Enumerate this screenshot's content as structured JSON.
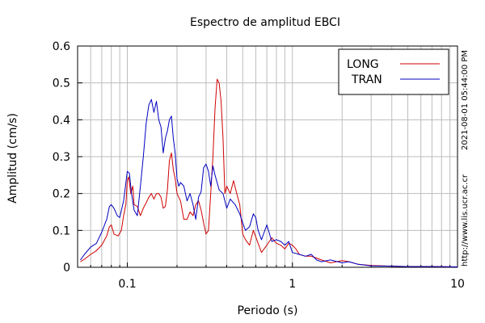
{
  "chart_data": {
    "type": "line",
    "title": "Espectro de amplitud EBCI",
    "xlabel": "Periodo (s)",
    "ylabel": "Amplitud (cm/s)",
    "xscale": "log",
    "xlim": [
      0.05,
      10
    ],
    "ylim": [
      0,
      0.6
    ],
    "grid": true,
    "legend_position": "top-right",
    "x_tick_labels": [
      "0.1",
      "1",
      "10"
    ],
    "y_tick_labels": [
      "0",
      "0.1",
      "0.2",
      "0.3",
      "0.4",
      "0.5",
      "0.6"
    ],
    "series": [
      {
        "name": "LONG",
        "color": "#d00000",
        "points": [
          [
            0.052,
            0.015
          ],
          [
            0.055,
            0.022
          ],
          [
            0.06,
            0.035
          ],
          [
            0.065,
            0.045
          ],
          [
            0.07,
            0.06
          ],
          [
            0.075,
            0.085
          ],
          [
            0.078,
            0.11
          ],
          [
            0.08,
            0.115
          ],
          [
            0.083,
            0.09
          ],
          [
            0.088,
            0.085
          ],
          [
            0.092,
            0.1
          ],
          [
            0.095,
            0.14
          ],
          [
            0.098,
            0.17
          ],
          [
            0.1,
            0.235
          ],
          [
            0.102,
            0.245
          ],
          [
            0.105,
            0.2
          ],
          [
            0.108,
            0.22
          ],
          [
            0.11,
            0.17
          ],
          [
            0.115,
            0.165
          ],
          [
            0.12,
            0.14
          ],
          [
            0.125,
            0.16
          ],
          [
            0.13,
            0.175
          ],
          [
            0.135,
            0.19
          ],
          [
            0.14,
            0.2
          ],
          [
            0.145,
            0.185
          ],
          [
            0.15,
            0.2
          ],
          [
            0.155,
            0.2
          ],
          [
            0.16,
            0.19
          ],
          [
            0.165,
            0.16
          ],
          [
            0.17,
            0.165
          ],
          [
            0.175,
            0.21
          ],
          [
            0.18,
            0.29
          ],
          [
            0.185,
            0.31
          ],
          [
            0.19,
            0.265
          ],
          [
            0.195,
            0.24
          ],
          [
            0.2,
            0.2
          ],
          [
            0.21,
            0.18
          ],
          [
            0.22,
            0.13
          ],
          [
            0.23,
            0.13
          ],
          [
            0.24,
            0.15
          ],
          [
            0.25,
            0.14
          ],
          [
            0.26,
            0.17
          ],
          [
            0.27,
            0.18
          ],
          [
            0.28,
            0.155
          ],
          [
            0.29,
            0.12
          ],
          [
            0.3,
            0.09
          ],
          [
            0.31,
            0.1
          ],
          [
            0.32,
            0.2
          ],
          [
            0.33,
            0.3
          ],
          [
            0.34,
            0.43
          ],
          [
            0.35,
            0.51
          ],
          [
            0.36,
            0.5
          ],
          [
            0.37,
            0.45
          ],
          [
            0.38,
            0.35
          ],
          [
            0.39,
            0.2
          ],
          [
            0.4,
            0.22
          ],
          [
            0.42,
            0.2
          ],
          [
            0.44,
            0.235
          ],
          [
            0.46,
            0.2
          ],
          [
            0.48,
            0.17
          ],
          [
            0.5,
            0.09
          ],
          [
            0.52,
            0.075
          ],
          [
            0.55,
            0.06
          ],
          [
            0.58,
            0.1
          ],
          [
            0.62,
            0.065
          ],
          [
            0.65,
            0.04
          ],
          [
            0.7,
            0.06
          ],
          [
            0.75,
            0.08
          ],
          [
            0.8,
            0.065
          ],
          [
            0.85,
            0.06
          ],
          [
            0.9,
            0.05
          ],
          [
            0.95,
            0.065
          ],
          [
            1.0,
            0.06
          ],
          [
            1.05,
            0.05
          ],
          [
            1.1,
            0.035
          ],
          [
            1.2,
            0.03
          ],
          [
            1.3,
            0.03
          ],
          [
            1.4,
            0.025
          ],
          [
            1.5,
            0.02
          ],
          [
            1.7,
            0.012
          ],
          [
            2.0,
            0.018
          ],
          [
            2.2,
            0.015
          ],
          [
            2.5,
            0.008
          ],
          [
            3.0,
            0.005
          ],
          [
            4.0,
            0.003
          ],
          [
            5.0,
            0.002
          ],
          [
            7.0,
            0.002
          ],
          [
            10.0,
            0.001
          ]
        ]
      },
      {
        "name": "TRAN",
        "color": "#0000c0",
        "points": [
          [
            0.052,
            0.02
          ],
          [
            0.055,
            0.035
          ],
          [
            0.06,
            0.055
          ],
          [
            0.065,
            0.065
          ],
          [
            0.07,
            0.095
          ],
          [
            0.075,
            0.13
          ],
          [
            0.078,
            0.165
          ],
          [
            0.08,
            0.17
          ],
          [
            0.083,
            0.16
          ],
          [
            0.087,
            0.14
          ],
          [
            0.09,
            0.135
          ],
          [
            0.095,
            0.18
          ],
          [
            0.1,
            0.26
          ],
          [
            0.103,
            0.255
          ],
          [
            0.106,
            0.2
          ],
          [
            0.11,
            0.155
          ],
          [
            0.115,
            0.14
          ],
          [
            0.12,
            0.22
          ],
          [
            0.125,
            0.3
          ],
          [
            0.13,
            0.39
          ],
          [
            0.135,
            0.44
          ],
          [
            0.14,
            0.455
          ],
          [
            0.145,
            0.42
          ],
          [
            0.15,
            0.45
          ],
          [
            0.155,
            0.4
          ],
          [
            0.16,
            0.38
          ],
          [
            0.165,
            0.31
          ],
          [
            0.17,
            0.35
          ],
          [
            0.175,
            0.37
          ],
          [
            0.18,
            0.4
          ],
          [
            0.185,
            0.41
          ],
          [
            0.19,
            0.35
          ],
          [
            0.195,
            0.31
          ],
          [
            0.2,
            0.24
          ],
          [
            0.205,
            0.22
          ],
          [
            0.21,
            0.23
          ],
          [
            0.22,
            0.22
          ],
          [
            0.23,
            0.18
          ],
          [
            0.24,
            0.2
          ],
          [
            0.25,
            0.17
          ],
          [
            0.26,
            0.13
          ],
          [
            0.27,
            0.19
          ],
          [
            0.28,
            0.205
          ],
          [
            0.29,
            0.27
          ],
          [
            0.3,
            0.28
          ],
          [
            0.31,
            0.26
          ],
          [
            0.32,
            0.22
          ],
          [
            0.33,
            0.275
          ],
          [
            0.34,
            0.25
          ],
          [
            0.36,
            0.21
          ],
          [
            0.38,
            0.2
          ],
          [
            0.4,
            0.16
          ],
          [
            0.42,
            0.185
          ],
          [
            0.45,
            0.17
          ],
          [
            0.48,
            0.145
          ],
          [
            0.5,
            0.12
          ],
          [
            0.52,
            0.1
          ],
          [
            0.55,
            0.11
          ],
          [
            0.58,
            0.145
          ],
          [
            0.6,
            0.135
          ],
          [
            0.62,
            0.1
          ],
          [
            0.65,
            0.075
          ],
          [
            0.7,
            0.115
          ],
          [
            0.75,
            0.07
          ],
          [
            0.8,
            0.075
          ],
          [
            0.85,
            0.07
          ],
          [
            0.9,
            0.06
          ],
          [
            0.95,
            0.07
          ],
          [
            1.0,
            0.04
          ],
          [
            1.1,
            0.035
          ],
          [
            1.2,
            0.03
          ],
          [
            1.3,
            0.035
          ],
          [
            1.4,
            0.02
          ],
          [
            1.5,
            0.015
          ],
          [
            1.7,
            0.02
          ],
          [
            2.0,
            0.012
          ],
          [
            2.2,
            0.015
          ],
          [
            2.5,
            0.008
          ],
          [
            3.0,
            0.004
          ],
          [
            4.0,
            0.003
          ],
          [
            5.0,
            0.002
          ],
          [
            7.0,
            0.002
          ],
          [
            10.0,
            0.001
          ]
        ]
      }
    ]
  },
  "side_labels": {
    "timestamp": "2021-08-01 05:44:00 PM",
    "url": "http://www.lis.ucr.ac.cr"
  }
}
